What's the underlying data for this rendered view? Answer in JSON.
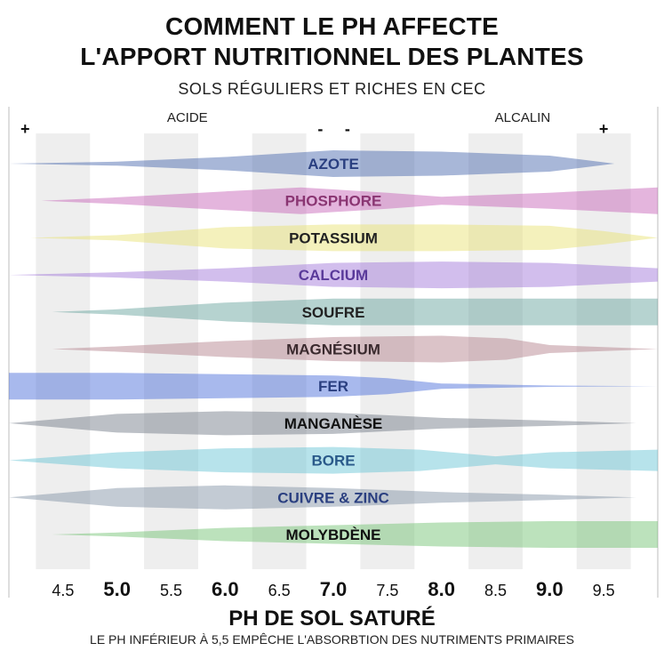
{
  "header": {
    "title_line1": "COMMENT LE PH AFFECTE",
    "title_line2": "L'APPORT NUTRITIONNEL DES PLANTES",
    "subtitle": "SOLS RÉGULIERS ET RICHES EN CEC"
  },
  "chart_data": {
    "type": "bar",
    "x_range": [
      4.0,
      10.0
    ],
    "x_ticks": [
      "4.5",
      "5.0",
      "5.5",
      "6.0",
      "6.5",
      "7.0",
      "7.5",
      "8.0",
      "8.5",
      "9.0",
      "9.5"
    ],
    "x_tick_values": [
      4.5,
      5.0,
      5.5,
      6.0,
      6.5,
      7.0,
      7.5,
      8.0,
      8.5,
      9.0,
      9.5
    ],
    "bold_ticks": [
      "5.0",
      "6.0",
      "7.0",
      "8.0",
      "9.0"
    ],
    "top_labels": {
      "acid": "ACIDE",
      "alkaline": "ALCALIN"
    },
    "top_markers": [
      {
        "text": "+",
        "ph": 4.15
      },
      {
        "text": "-",
        "ph": 6.88
      },
      {
        "text": "-",
        "ph": 7.13
      },
      {
        "text": "+",
        "ph": 9.5
      }
    ],
    "xlabel": "PH DE SOL SATURÉ",
    "note": "LE PH INFÉRIEUR À 5,5 EMPÊCHE L'ABSORBTION DES NUTRIMENTS PRIMAIRES",
    "series": [
      {
        "name": "AZOTE",
        "color": "#3f5fa8",
        "label_color": "#2a3f80",
        "profile": [
          [
            4.0,
            0.0
          ],
          [
            5.0,
            0.15
          ],
          [
            6.0,
            0.5
          ],
          [
            7.0,
            1.0
          ],
          [
            8.0,
            0.9
          ],
          [
            9.0,
            0.6
          ],
          [
            9.6,
            0.0
          ]
        ]
      },
      {
        "name": "PHOSPHORE",
        "color": "#c45cb3",
        "label_color": "#8a3572",
        "profile": [
          [
            4.3,
            0.0
          ],
          [
            5.0,
            0.25
          ],
          [
            6.0,
            0.7
          ],
          [
            6.7,
            1.0
          ],
          [
            7.5,
            0.6
          ],
          [
            8.0,
            0.3
          ],
          [
            9.0,
            0.6
          ],
          [
            10.0,
            1.0
          ]
        ]
      },
      {
        "name": "POTASSIUM",
        "color": "#e6e06a",
        "label_color": "#222222",
        "profile": [
          [
            4.2,
            0.0
          ],
          [
            5.0,
            0.2
          ],
          [
            6.0,
            0.8
          ],
          [
            7.0,
            1.0
          ],
          [
            8.0,
            1.0
          ],
          [
            9.0,
            0.9
          ],
          [
            9.5,
            0.5
          ],
          [
            10.0,
            0.0
          ]
        ]
      },
      {
        "name": "CALCIUM",
        "color": "#9b6fd6",
        "label_color": "#5a3a9a",
        "profile": [
          [
            4.0,
            0.0
          ],
          [
            5.0,
            0.2
          ],
          [
            6.0,
            0.5
          ],
          [
            7.0,
            0.9
          ],
          [
            8.0,
            1.0
          ],
          [
            9.0,
            0.9
          ],
          [
            10.0,
            0.5
          ]
        ]
      },
      {
        "name": "SOUFRE",
        "color": "#5e9e96",
        "label_color": "#222222",
        "profile": [
          [
            4.4,
            0.0
          ],
          [
            5.0,
            0.2
          ],
          [
            6.0,
            0.7
          ],
          [
            7.0,
            1.0
          ],
          [
            8.0,
            1.0
          ],
          [
            9.0,
            1.0
          ],
          [
            10.0,
            1.0
          ]
        ]
      },
      {
        "name": "MAGNÉSIUM",
        "color": "#b07a86",
        "label_color": "#3a2a2e",
        "profile": [
          [
            4.4,
            0.0
          ],
          [
            5.0,
            0.2
          ],
          [
            6.0,
            0.6
          ],
          [
            7.0,
            0.9
          ],
          [
            8.0,
            1.0
          ],
          [
            8.6,
            0.8
          ],
          [
            9.0,
            0.3
          ],
          [
            10.0,
            0.0
          ]
        ]
      },
      {
        "name": "FER",
        "color": "#3f64d6",
        "label_color": "#2a3f80",
        "profile": [
          [
            4.0,
            1.0
          ],
          [
            5.0,
            1.0
          ],
          [
            6.0,
            0.9
          ],
          [
            7.0,
            0.8
          ],
          [
            7.5,
            0.6
          ],
          [
            8.0,
            0.2
          ],
          [
            9.0,
            0.05
          ],
          [
            10.0,
            0.0
          ]
        ]
      },
      {
        "name": "MANGANÈSE",
        "color": "#6b7380",
        "label_color": "#111111",
        "profile": [
          [
            4.0,
            0.0
          ],
          [
            5.0,
            0.7
          ],
          [
            6.0,
            0.9
          ],
          [
            7.0,
            0.8
          ],
          [
            8.0,
            0.4
          ],
          [
            9.0,
            0.2
          ],
          [
            9.8,
            0.0
          ]
        ]
      },
      {
        "name": "BORE",
        "color": "#5fc2d2",
        "label_color": "#2a5a8a",
        "profile": [
          [
            4.0,
            0.0
          ],
          [
            5.0,
            0.6
          ],
          [
            6.0,
            0.9
          ],
          [
            7.0,
            1.0
          ],
          [
            7.8,
            0.8
          ],
          [
            8.5,
            0.3
          ],
          [
            9.0,
            0.6
          ],
          [
            10.0,
            0.8
          ]
        ]
      },
      {
        "name": "CUIVRE & ZINC",
        "color": "#7a8ca0",
        "label_color": "#2a3f80",
        "profile": [
          [
            4.0,
            0.0
          ],
          [
            5.0,
            0.7
          ],
          [
            6.0,
            0.9
          ],
          [
            7.0,
            0.7
          ],
          [
            8.0,
            0.4
          ],
          [
            9.0,
            0.2
          ],
          [
            9.8,
            0.0
          ]
        ]
      },
      {
        "name": "MOLYBDÈNE",
        "color": "#6bbf6b",
        "label_color": "#111111",
        "profile": [
          [
            4.4,
            0.0
          ],
          [
            5.0,
            0.15
          ],
          [
            6.0,
            0.5
          ],
          [
            7.0,
            0.7
          ],
          [
            8.0,
            0.9
          ],
          [
            9.0,
            1.0
          ],
          [
            10.0,
            1.0
          ]
        ]
      }
    ]
  }
}
